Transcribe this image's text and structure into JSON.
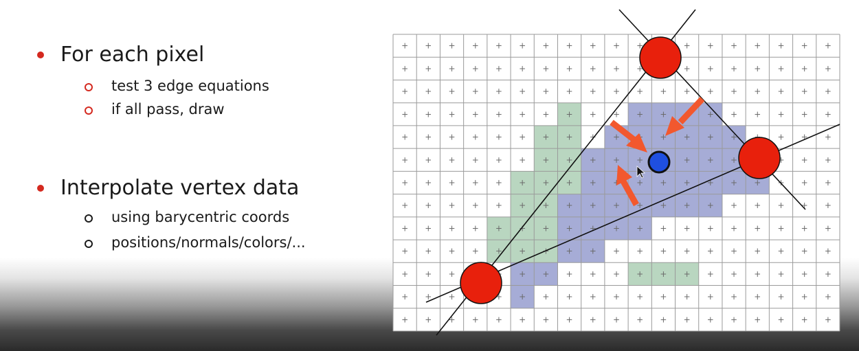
{
  "bullets": [
    {
      "text": "For each pixel",
      "sub": [
        "test 3 edge equations",
        "if all pass, draw"
      ]
    },
    {
      "text": "Interpolate vertex data",
      "sub": [
        "using barycentric coords",
        "positions/normals/colors/..."
      ]
    }
  ],
  "diagram": {
    "grid_cols": 19,
    "grid_rows": 13,
    "cell_marker": "+",
    "colors": {
      "inside": "#a6acd6",
      "green": "#b9d6c0",
      "vertex": "#e8200c",
      "sample_point": "#1f4fe0",
      "arrow": "#f2582e",
      "grid_line": "#9a9a9a"
    },
    "purple_cells": [
      [
        10,
        3
      ],
      [
        11,
        3
      ],
      [
        12,
        3
      ],
      [
        13,
        3
      ],
      [
        9,
        4
      ],
      [
        10,
        4
      ],
      [
        11,
        4
      ],
      [
        12,
        4
      ],
      [
        13,
        4
      ],
      [
        14,
        4
      ],
      [
        8,
        5
      ],
      [
        9,
        5
      ],
      [
        10,
        5
      ],
      [
        11,
        5
      ],
      [
        12,
        5
      ],
      [
        13,
        5
      ],
      [
        14,
        5
      ],
      [
        15,
        5
      ],
      [
        8,
        6
      ],
      [
        9,
        6
      ],
      [
        10,
        6
      ],
      [
        11,
        6
      ],
      [
        12,
        6
      ],
      [
        13,
        6
      ],
      [
        14,
        6
      ],
      [
        15,
        6
      ],
      [
        7,
        7
      ],
      [
        8,
        7
      ],
      [
        9,
        7
      ],
      [
        10,
        7
      ],
      [
        11,
        7
      ],
      [
        12,
        7
      ],
      [
        13,
        7
      ],
      [
        7,
        8
      ],
      [
        8,
        8
      ],
      [
        9,
        8
      ],
      [
        10,
        8
      ],
      [
        6,
        9
      ],
      [
        7,
        9
      ],
      [
        8,
        9
      ],
      [
        5,
        10
      ],
      [
        6,
        10
      ],
      [
        5,
        11
      ]
    ],
    "green_cells": [
      [
        7,
        3
      ],
      [
        6,
        4
      ],
      [
        7,
        4
      ],
      [
        6,
        5
      ],
      [
        7,
        5
      ],
      [
        5,
        6
      ],
      [
        6,
        6
      ],
      [
        7,
        6
      ],
      [
        5,
        7
      ],
      [
        6,
        7
      ],
      [
        4,
        8
      ],
      [
        5,
        8
      ],
      [
        6,
        8
      ],
      [
        4,
        9
      ],
      [
        5,
        9
      ],
      [
        6,
        9
      ],
      [
        10,
        10
      ],
      [
        11,
        10
      ],
      [
        12,
        10
      ]
    ],
    "icon_names": [
      "red-vertex-icon",
      "blue-sample-point-icon",
      "orange-arrow-icon",
      "mouse-cursor-icon"
    ]
  }
}
